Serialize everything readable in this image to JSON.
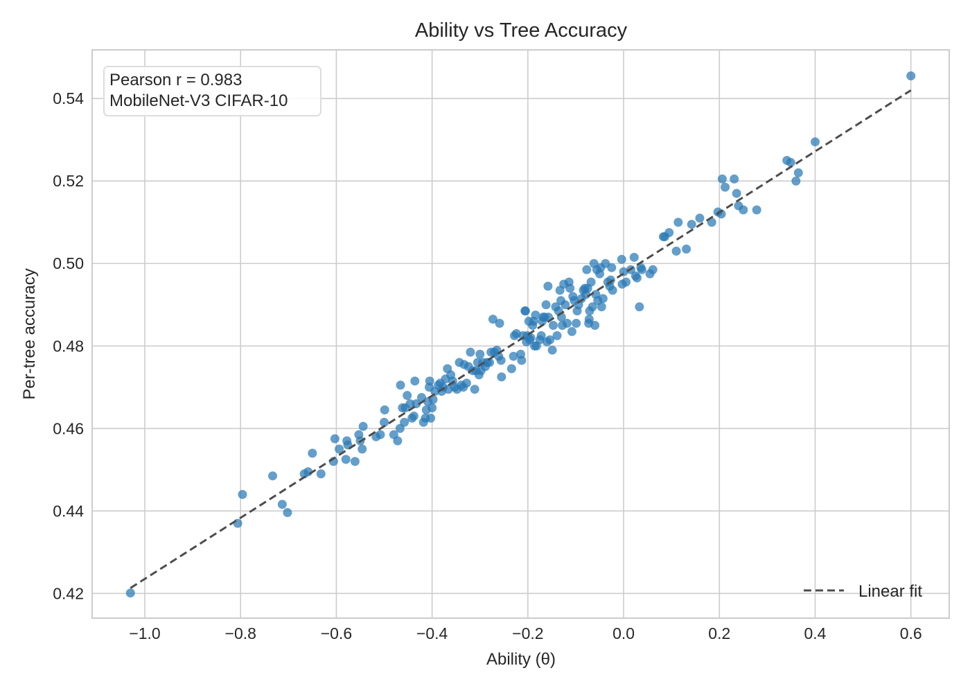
{
  "chart_data": {
    "type": "scatter",
    "title": "Ability vs Tree Accuracy",
    "xlabel": "Ability (θ)",
    "ylabel": "Per-tree accuracy",
    "xlim": [
      -1.11,
      0.68
    ],
    "ylim": [
      0.414,
      0.5518
    ],
    "xticks": [
      -1.0,
      -0.8,
      -0.6,
      -0.4,
      -0.2,
      0.0,
      0.2,
      0.4,
      0.6
    ],
    "xtick_labels": [
      "−1.0",
      "−0.8",
      "−0.6",
      "−0.4",
      "−0.2",
      "0.0",
      "0.2",
      "0.4",
      "0.6"
    ],
    "yticks": [
      0.42,
      0.44,
      0.46,
      0.48,
      0.5,
      0.52,
      0.54
    ],
    "ytick_labels": [
      "0.42",
      "0.44",
      "0.46",
      "0.48",
      "0.50",
      "0.52",
      "0.54"
    ],
    "grid": true,
    "legend": {
      "position": "lower-right",
      "entries": [
        "Linear fit"
      ]
    },
    "annotation": {
      "line1": "Pearson r = 0.983",
      "line2": "MobileNet-V3 CIFAR-10",
      "position": "upper-left"
    },
    "colors": {
      "points": "#2878b5",
      "fit": "#4d4d4d",
      "grid": "#cccccc"
    },
    "fit_line": {
      "x": [
        -1.03,
        0.6
      ],
      "y": [
        0.4213,
        0.542
      ]
    },
    "series": [
      {
        "points": [
          [
            -1.03,
            0.4201
          ],
          [
            -0.806,
            0.437
          ],
          [
            -0.796,
            0.444
          ],
          [
            -0.733,
            0.4485
          ],
          [
            -0.713,
            0.4416
          ],
          [
            -0.702,
            0.4396
          ],
          [
            -0.667,
            0.449
          ],
          [
            -0.659,
            0.4495
          ],
          [
            -0.65,
            0.454
          ],
          [
            -0.632,
            0.449
          ],
          [
            -0.606,
            0.452
          ],
          [
            -0.603,
            0.4575
          ],
          [
            -0.594,
            0.455
          ],
          [
            -0.58,
            0.4525
          ],
          [
            -0.578,
            0.457
          ],
          [
            -0.576,
            0.456
          ],
          [
            -0.561,
            0.452
          ],
          [
            -0.553,
            0.4585
          ],
          [
            -0.55,
            0.457
          ],
          [
            -0.546,
            0.455
          ],
          [
            -0.544,
            0.4605
          ],
          [
            -0.517,
            0.458
          ],
          [
            -0.508,
            0.4585
          ],
          [
            -0.5,
            0.4615
          ],
          [
            -0.499,
            0.4645
          ],
          [
            -0.48,
            0.4585
          ],
          [
            -0.472,
            0.457
          ],
          [
            -0.467,
            0.46
          ],
          [
            -0.466,
            0.4705
          ],
          [
            -0.462,
            0.465
          ],
          [
            -0.458,
            0.4615
          ],
          [
            -0.456,
            0.465
          ],
          [
            -0.452,
            0.468
          ],
          [
            -0.446,
            0.466
          ],
          [
            -0.442,
            0.4625
          ],
          [
            -0.438,
            0.463
          ],
          [
            -0.436,
            0.4715
          ],
          [
            -0.433,
            0.466
          ],
          [
            -0.422,
            0.4675
          ],
          [
            -0.418,
            0.4615
          ],
          [
            -0.414,
            0.4625
          ],
          [
            -0.412,
            0.4645
          ],
          [
            -0.409,
            0.4665
          ],
          [
            -0.406,
            0.47
          ],
          [
            -0.405,
            0.4715
          ],
          [
            -0.403,
            0.4625
          ],
          [
            -0.4,
            0.465
          ],
          [
            -0.398,
            0.467
          ],
          [
            -0.394,
            0.469
          ],
          [
            -0.387,
            0.4705
          ],
          [
            -0.383,
            0.471
          ],
          [
            -0.38,
            0.469
          ],
          [
            -0.377,
            0.47
          ],
          [
            -0.372,
            0.472
          ],
          [
            -0.368,
            0.4745
          ],
          [
            -0.366,
            0.4695
          ],
          [
            -0.361,
            0.473
          ],
          [
            -0.357,
            0.4715
          ],
          [
            -0.353,
            0.47
          ],
          [
            -0.348,
            0.4695
          ],
          [
            -0.343,
            0.476
          ],
          [
            -0.339,
            0.4705
          ],
          [
            -0.335,
            0.47
          ],
          [
            -0.333,
            0.4755
          ],
          [
            -0.328,
            0.471
          ],
          [
            -0.324,
            0.475
          ],
          [
            -0.32,
            0.4785
          ],
          [
            -0.315,
            0.474
          ],
          [
            -0.311,
            0.4695
          ],
          [
            -0.308,
            0.474
          ],
          [
            -0.305,
            0.476
          ],
          [
            -0.302,
            0.473
          ],
          [
            -0.3,
            0.478
          ],
          [
            -0.298,
            0.474
          ],
          [
            -0.294,
            0.476
          ],
          [
            -0.289,
            0.475
          ],
          [
            -0.285,
            0.476
          ],
          [
            -0.28,
            0.476
          ],
          [
            -0.277,
            0.4785
          ],
          [
            -0.273,
            0.4865
          ],
          [
            -0.27,
            0.4785
          ],
          [
            -0.265,
            0.479
          ],
          [
            -0.261,
            0.4775
          ],
          [
            -0.259,
            0.4855
          ],
          [
            -0.256,
            0.4765
          ],
          [
            -0.255,
            0.4725
          ],
          [
            -0.234,
            0.4745
          ],
          [
            -0.23,
            0.4775
          ],
          [
            -0.228,
            0.4825
          ],
          [
            -0.224,
            0.483
          ],
          [
            -0.215,
            0.478
          ],
          [
            -0.213,
            0.4765
          ],
          [
            -0.21,
            0.4825
          ],
          [
            -0.206,
            0.4885
          ],
          [
            -0.205,
            0.4885
          ],
          [
            -0.203,
            0.481
          ],
          [
            -0.201,
            0.4825
          ],
          [
            -0.198,
            0.486
          ],
          [
            -0.196,
            0.4815
          ],
          [
            -0.194,
            0.482
          ],
          [
            -0.19,
            0.485
          ],
          [
            -0.188,
            0.486
          ],
          [
            -0.186,
            0.48
          ],
          [
            -0.184,
            0.4875
          ],
          [
            -0.182,
            0.48
          ],
          [
            -0.175,
            0.4815
          ],
          [
            -0.172,
            0.4825
          ],
          [
            -0.17,
            0.486
          ],
          [
            -0.168,
            0.487
          ],
          [
            -0.165,
            0.487
          ],
          [
            -0.162,
            0.49
          ],
          [
            -0.16,
            0.481
          ],
          [
            -0.158,
            0.4945
          ],
          [
            -0.157,
            0.487
          ],
          [
            -0.154,
            0.4815
          ],
          [
            -0.149,
            0.479
          ],
          [
            -0.147,
            0.485
          ],
          [
            -0.142,
            0.4895
          ],
          [
            -0.139,
            0.4825
          ],
          [
            -0.136,
            0.4885
          ],
          [
            -0.133,
            0.4935
          ],
          [
            -0.131,
            0.491
          ],
          [
            -0.13,
            0.487
          ],
          [
            -0.128,
            0.485
          ],
          [
            -0.125,
            0.495
          ],
          [
            -0.122,
            0.49
          ],
          [
            -0.118,
            0.4855
          ],
          [
            -0.114,
            0.4955
          ],
          [
            -0.112,
            0.494
          ],
          [
            -0.108,
            0.4835
          ],
          [
            -0.106,
            0.492
          ],
          [
            -0.103,
            0.491
          ],
          [
            -0.099,
            0.4855
          ],
          [
            -0.097,
            0.4885
          ],
          [
            -0.094,
            0.49
          ],
          [
            -0.088,
            0.4915
          ],
          [
            -0.084,
            0.4935
          ],
          [
            -0.081,
            0.494
          ],
          [
            -0.079,
            0.4925
          ],
          [
            -0.077,
            0.4985
          ],
          [
            -0.075,
            0.494
          ],
          [
            -0.073,
            0.4855
          ],
          [
            -0.072,
            0.4865
          ],
          [
            -0.071,
            0.4885
          ],
          [
            -0.068,
            0.4955
          ],
          [
            -0.065,
            0.4895
          ],
          [
            -0.062,
            0.5
          ],
          [
            -0.06,
            0.485
          ],
          [
            -0.058,
            0.4925
          ],
          [
            -0.056,
            0.4985
          ],
          [
            -0.054,
            0.491
          ],
          [
            -0.05,
            0.4975
          ],
          [
            -0.048,
            0.499
          ],
          [
            -0.046,
            0.4895
          ],
          [
            -0.043,
            0.4915
          ],
          [
            -0.038,
            0.5
          ],
          [
            -0.033,
            0.4955
          ],
          [
            -0.029,
            0.4945
          ],
          [
            -0.027,
            0.496
          ],
          [
            -0.025,
            0.499
          ],
          [
            -0.023,
            0.4935
          ],
          [
            -0.004,
            0.501
          ],
          [
            -0.003,
            0.495
          ],
          [
            0.0,
            0.498
          ],
          [
            0.005,
            0.4955
          ],
          [
            0.015,
            0.4985
          ],
          [
            0.022,
            0.5015
          ],
          [
            0.025,
            0.497
          ],
          [
            0.028,
            0.4965
          ],
          [
            0.033,
            0.4895
          ],
          [
            0.036,
            0.499
          ],
          [
            0.038,
            0.4985
          ],
          [
            0.055,
            0.4975
          ],
          [
            0.061,
            0.4985
          ],
          [
            0.083,
            0.5065
          ],
          [
            0.086,
            0.5065
          ],
          [
            0.095,
            0.5075
          ],
          [
            0.11,
            0.503
          ],
          [
            0.114,
            0.51
          ],
          [
            0.131,
            0.5035
          ],
          [
            0.142,
            0.5095
          ],
          [
            0.159,
            0.511
          ],
          [
            0.184,
            0.51
          ],
          [
            0.197,
            0.5125
          ],
          [
            0.204,
            0.512
          ],
          [
            0.206,
            0.5205
          ],
          [
            0.212,
            0.5185
          ],
          [
            0.231,
            0.5205
          ],
          [
            0.236,
            0.517
          ],
          [
            0.24,
            0.514
          ],
          [
            0.25,
            0.513
          ],
          [
            0.278,
            0.513
          ],
          [
            0.341,
            0.525
          ],
          [
            0.349,
            0.5245
          ],
          [
            0.36,
            0.52
          ],
          [
            0.365,
            0.522
          ],
          [
            0.4,
            0.5295
          ],
          [
            0.6,
            0.5455
          ]
        ]
      }
    ]
  }
}
